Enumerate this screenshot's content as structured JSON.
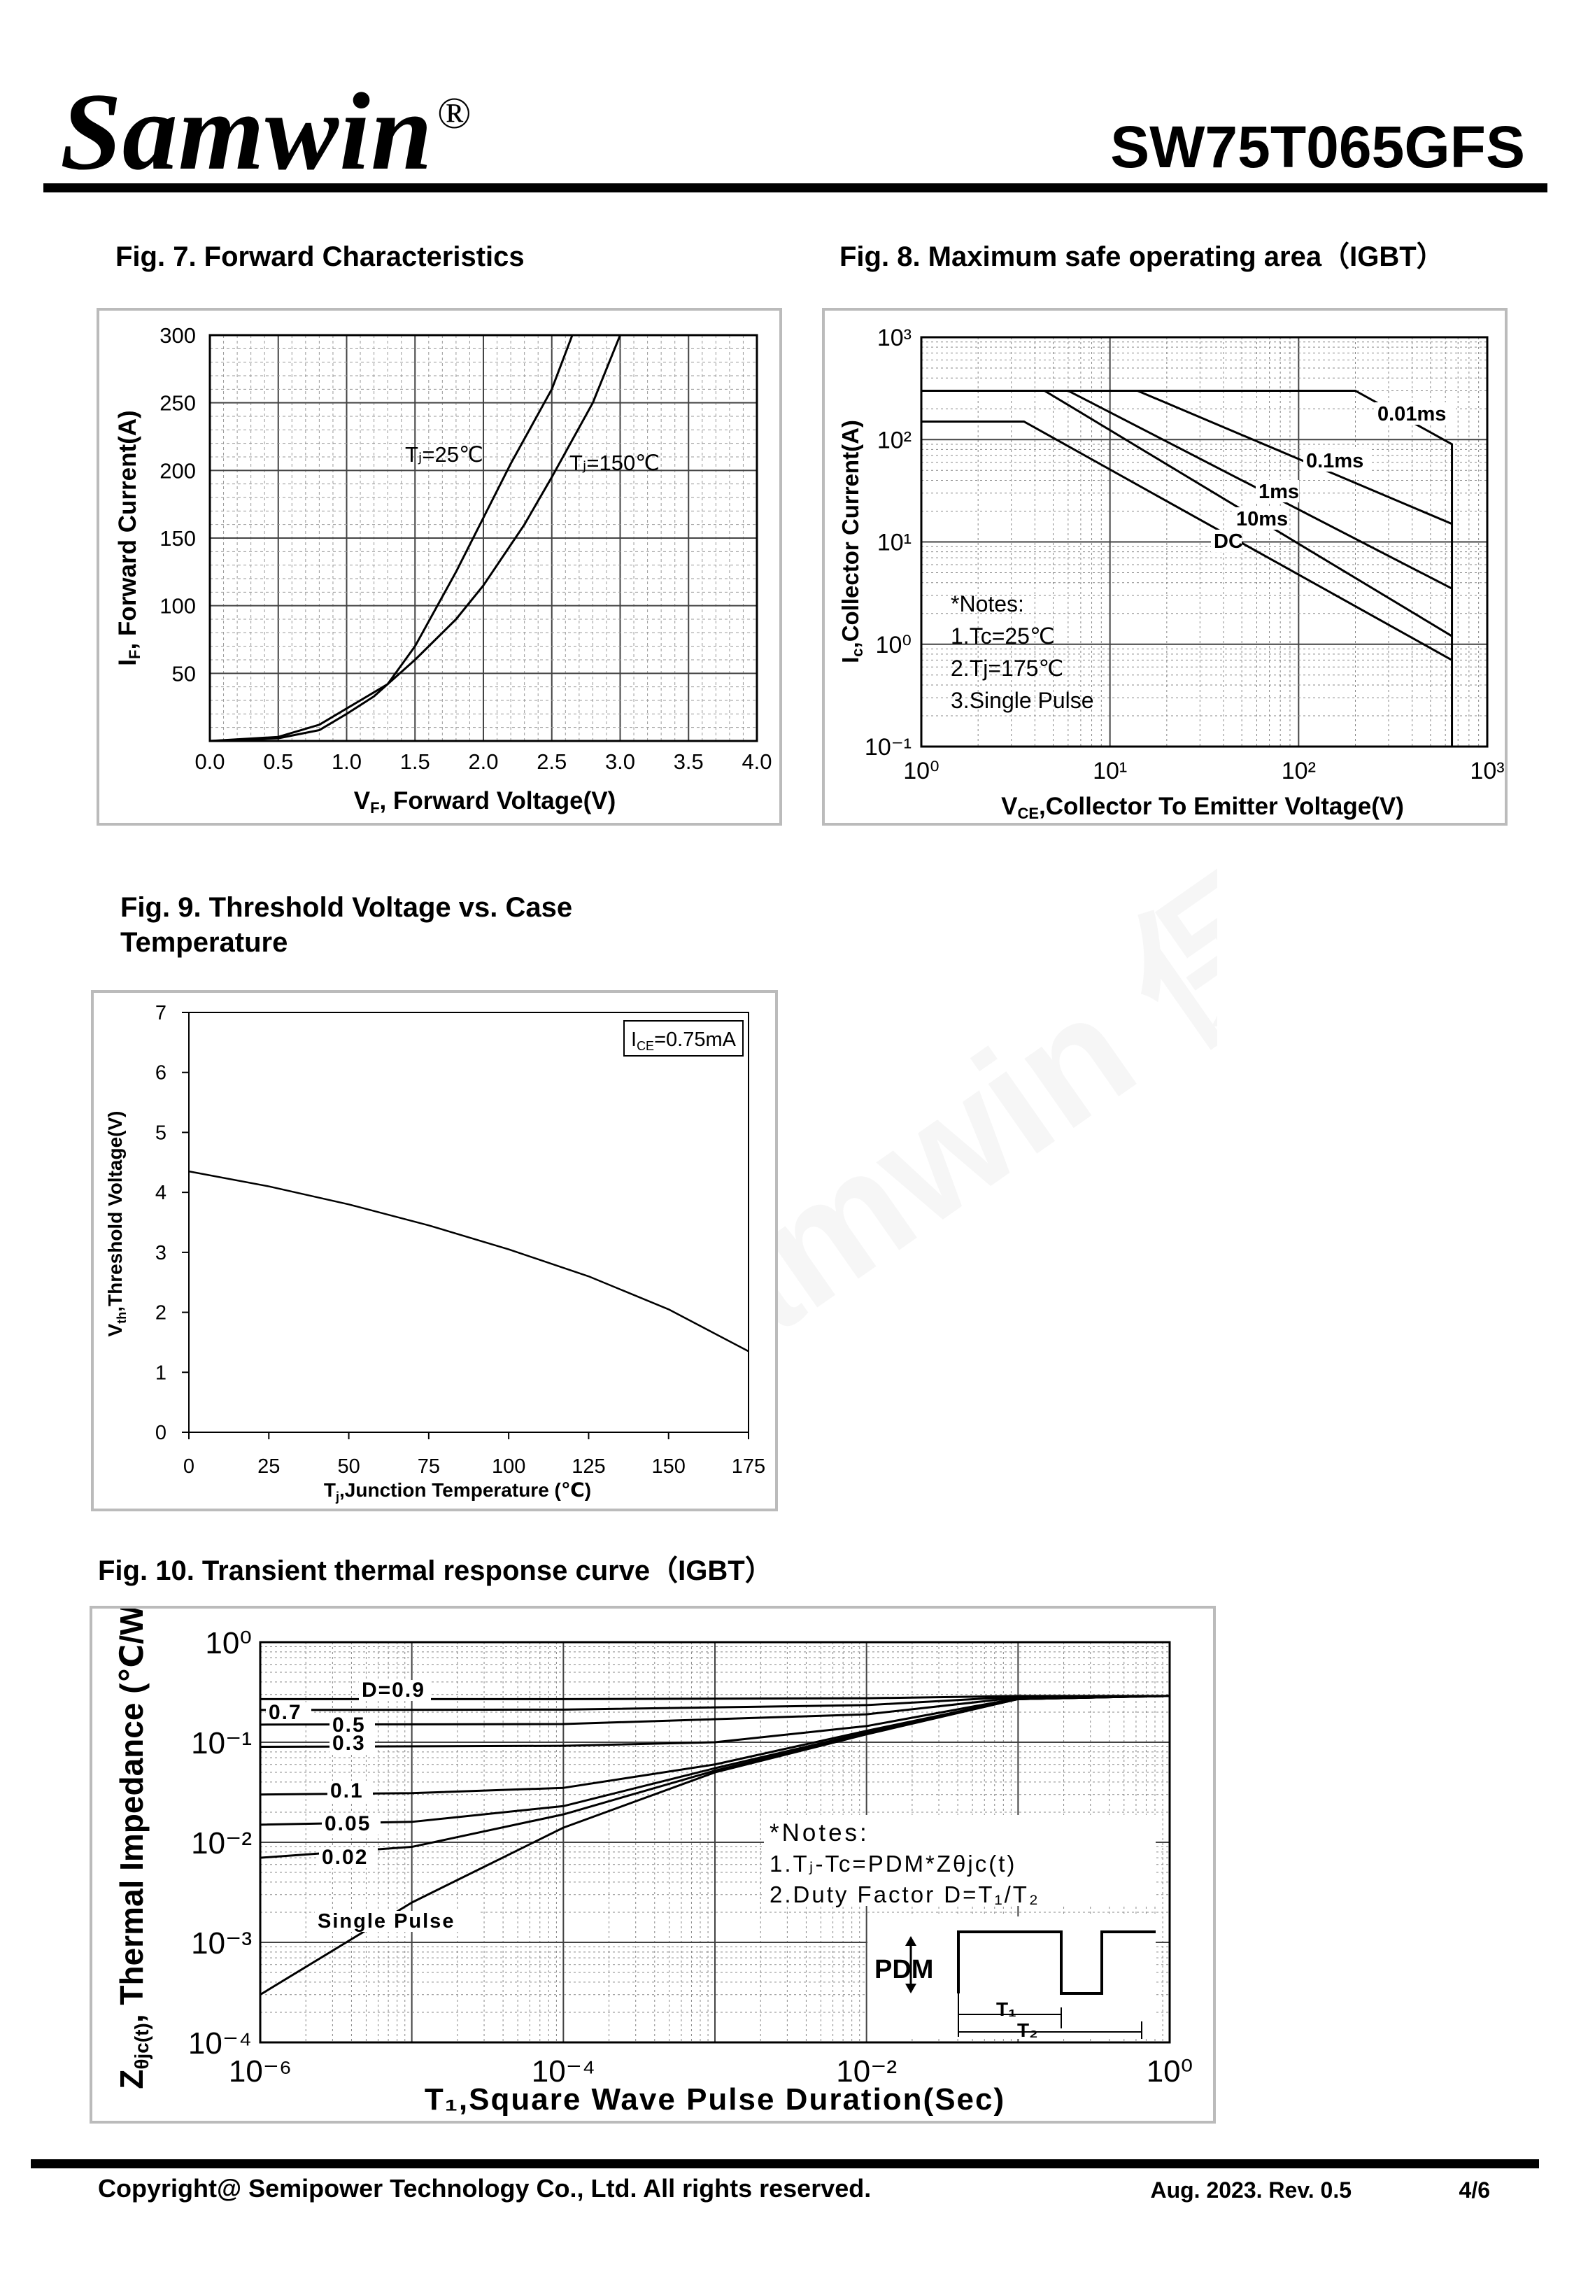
{
  "header": {
    "logo_text": "Samwin",
    "logo_mark": "®",
    "part_number": "SW75T065GFS"
  },
  "footer": {
    "copyright": "Copyright@ Semipower Technology Co., Ltd. All rights reserved.",
    "revision": "Aug. 2023. Rev. 0.5",
    "page": "4/6"
  },
  "watermark": {
    "text": "Samwin 保密"
  },
  "figures": {
    "fig7": {
      "title": "Fig. 7. Forward Characteristics",
      "xlabel_main": "V",
      "xlabel_sub": "F",
      "xlabel_rest": ", Forward Voltage(V)",
      "ylabel_main": "I",
      "ylabel_sub": "F",
      "ylabel_rest": ", Forward Current(A)",
      "curve1_label": "Tⱼ=25℃",
      "curve2_label": "Tⱼ=150℃"
    },
    "fig8": {
      "title": "Fig. 8. Maximum safe operating area（IGBT）",
      "xlabel_main": "V",
      "xlabel_sub": "CE",
      "xlabel_rest": ",Collector To Emitter Voltage(V)",
      "ylabel_main": "I",
      "ylabel_sub": "c",
      "ylabel_rest": ",Collector Current(A)",
      "notes": [
        "*Notes:",
        "1.Tc=25℃",
        "2.Tj=175℃",
        "3.Single Pulse"
      ]
    },
    "fig9": {
      "title_line1": "Fig. 9. Threshold Voltage vs. Case",
      "title_line2": "Temperature",
      "xlabel_main": "T",
      "xlabel_sub": "j",
      "xlabel_rest": ",Junction Temperature (℃)",
      "ylabel_main": "V",
      "ylabel_sub": "th",
      "ylabel_rest": ",Threshold Voltage(V)",
      "legend_main": "I",
      "legend_sub": "CE",
      "legend_rest": "=0.75mA"
    },
    "fig10": {
      "title": "Fig. 10. Transient thermal response curve（IGBT）",
      "xlabel": "T₁,Square Wave Pulse Duration(Sec)",
      "ylabel_main": "Z",
      "ylabel_sub": "θjc(t)",
      "ylabel_rest": ", Thermal Impedance (℃/W)",
      "notes_title": "*Notes:",
      "note1": "1.Tⱼ-Tc=PDM*Zθjc(t)",
      "note2": "2.Duty Factor D=T₁/T₂",
      "pdm_label": "PDM",
      "t1_label": "T₁",
      "t2_label": "T₂"
    }
  },
  "chart_data": [
    {
      "id": "fig7",
      "type": "line",
      "title": "Fig. 7. Forward Characteristics",
      "xlabel": "VF, Forward Voltage(V)",
      "ylabel": "IF, Forward Current(A)",
      "xlim": [
        0,
        4
      ],
      "ylim": [
        0,
        300
      ],
      "xticks": [
        "0.0",
        "0.5",
        "1.0",
        "1.5",
        "2.0",
        "2.5",
        "3.0",
        "3.5",
        "4.0"
      ],
      "yticks": [
        "50",
        "100",
        "150",
        "200",
        "250",
        "300"
      ],
      "grid": true,
      "series": [
        {
          "name": "Tj=25℃",
          "x": [
            0,
            0.5,
            0.8,
            1.0,
            1.2,
            1.3,
            1.5,
            1.8,
            2.0,
            2.2,
            2.5,
            2.65
          ],
          "y": [
            0,
            2,
            8,
            20,
            33,
            42,
            70,
            125,
            165,
            205,
            260,
            300
          ]
        },
        {
          "name": "Tj=150℃",
          "x": [
            0,
            0.5,
            0.8,
            1.0,
            1.2,
            1.3,
            1.5,
            1.8,
            2.0,
            2.3,
            2.5,
            2.8,
            3.0
          ],
          "y": [
            0,
            3,
            12,
            24,
            36,
            42,
            60,
            90,
            115,
            160,
            195,
            250,
            300
          ]
        }
      ]
    },
    {
      "id": "fig8",
      "type": "line",
      "title": "Fig. 8. Maximum safe operating area（IGBT）",
      "xlabel": "VCE,Collector To Emitter Voltage(V)",
      "ylabel": "Ic,Collector Current(A)",
      "xscale": "log",
      "yscale": "log",
      "xlim": [
        1,
        1000
      ],
      "ylim": [
        0.1,
        1000
      ],
      "xticks": [
        "10⁰",
        "10¹",
        "10²",
        "10³"
      ],
      "yticks": [
        "10⁻¹",
        "10⁰",
        "10¹",
        "10²",
        "10³"
      ],
      "grid": true,
      "series": [
        {
          "name": "0.01ms",
          "x": [
            1,
            200,
            650,
            650
          ],
          "y": [
            300,
            300,
            90,
            0.1
          ]
        },
        {
          "name": "0.1ms",
          "x": [
            1,
            14,
            650
          ],
          "y": [
            300,
            300,
            15
          ]
        },
        {
          "name": "1ms",
          "x": [
            1,
            6,
            650
          ],
          "y": [
            300,
            300,
            3.5
          ]
        },
        {
          "name": "10ms",
          "x": [
            1,
            4.5,
            650
          ],
          "y": [
            300,
            300,
            1.2
          ]
        },
        {
          "name": "DC",
          "x": [
            1,
            3.5,
            650
          ],
          "y": [
            150,
            150,
            0.7
          ]
        }
      ]
    },
    {
      "id": "fig9",
      "type": "line",
      "title": "Fig. 9. Threshold Voltage vs. Case Temperature",
      "xlabel": "Tj,Junction Temperature (℃)",
      "ylabel": "Vth,Threshold Voltage(V)",
      "xlim": [
        0,
        175
      ],
      "ylim": [
        0,
        7
      ],
      "xticks": [
        "0",
        "25",
        "50",
        "75",
        "100",
        "125",
        "150",
        "175"
      ],
      "yticks": [
        "0",
        "1",
        "2",
        "3",
        "4",
        "5",
        "6",
        "7"
      ],
      "grid": false,
      "series": [
        {
          "name": "ICE=0.75mA",
          "x": [
            0,
            25,
            50,
            75,
            100,
            125,
            150,
            175
          ],
          "y": [
            4.35,
            4.1,
            3.8,
            3.45,
            3.05,
            2.6,
            2.05,
            1.35
          ]
        }
      ]
    },
    {
      "id": "fig10",
      "type": "line",
      "title": "Fig. 10. Transient thermal response curve（IGBT）",
      "xlabel": "T₁,Square Wave Pulse Duration(Sec)",
      "ylabel": "Zθjc(t), Thermal Impedance (℃/W)",
      "xscale": "log",
      "yscale": "log",
      "xlim": [
        1e-06,
        1
      ],
      "ylim": [
        0.0001,
        1
      ],
      "xticks": [
        "10⁻⁶",
        "10⁻⁴",
        "10⁻²",
        "10⁰"
      ],
      "yticks": [
        "10⁰",
        "10⁻¹",
        "10⁻²",
        "10⁻³",
        "10⁻⁴"
      ],
      "grid": true,
      "series": [
        {
          "name": "D=0.9",
          "x": [
            1e-06,
            0.0001,
            0.01,
            0.1,
            1
          ],
          "y": [
            0.27,
            0.27,
            0.275,
            0.29,
            0.29
          ]
        },
        {
          "name": "0.7",
          "x": [
            1e-06,
            0.0001,
            0.01,
            0.1,
            1
          ],
          "y": [
            0.21,
            0.212,
            0.235,
            0.285,
            0.29
          ]
        },
        {
          "name": "0.5",
          "x": [
            1e-06,
            0.0001,
            0.01,
            0.1,
            1
          ],
          "y": [
            0.15,
            0.152,
            0.19,
            0.28,
            0.29
          ]
        },
        {
          "name": "0.3",
          "x": [
            1e-06,
            0.0001,
            0.001,
            0.01,
            0.1,
            1
          ],
          "y": [
            0.09,
            0.092,
            0.1,
            0.145,
            0.275,
            0.29
          ]
        },
        {
          "name": "0.1",
          "x": [
            1e-06,
            1e-05,
            0.0001,
            0.001,
            0.01,
            0.1,
            1
          ],
          "y": [
            0.03,
            0.031,
            0.035,
            0.06,
            0.13,
            0.27,
            0.29
          ]
        },
        {
          "name": "0.05",
          "x": [
            1e-06,
            1e-05,
            0.0001,
            0.001,
            0.01,
            0.1,
            1
          ],
          "y": [
            0.015,
            0.016,
            0.023,
            0.055,
            0.125,
            0.27,
            0.29
          ]
        },
        {
          "name": "0.02",
          "x": [
            1e-06,
            1e-05,
            0.0001,
            0.001,
            0.01,
            0.1,
            1
          ],
          "y": [
            0.007,
            0.009,
            0.019,
            0.052,
            0.123,
            0.27,
            0.29
          ]
        },
        {
          "name": "Single Pulse",
          "x": [
            1e-06,
            1e-05,
            0.0001,
            0.001,
            0.01,
            0.1,
            1
          ],
          "y": [
            0.0003,
            0.0025,
            0.014,
            0.05,
            0.12,
            0.27,
            0.29
          ]
        }
      ]
    }
  ]
}
